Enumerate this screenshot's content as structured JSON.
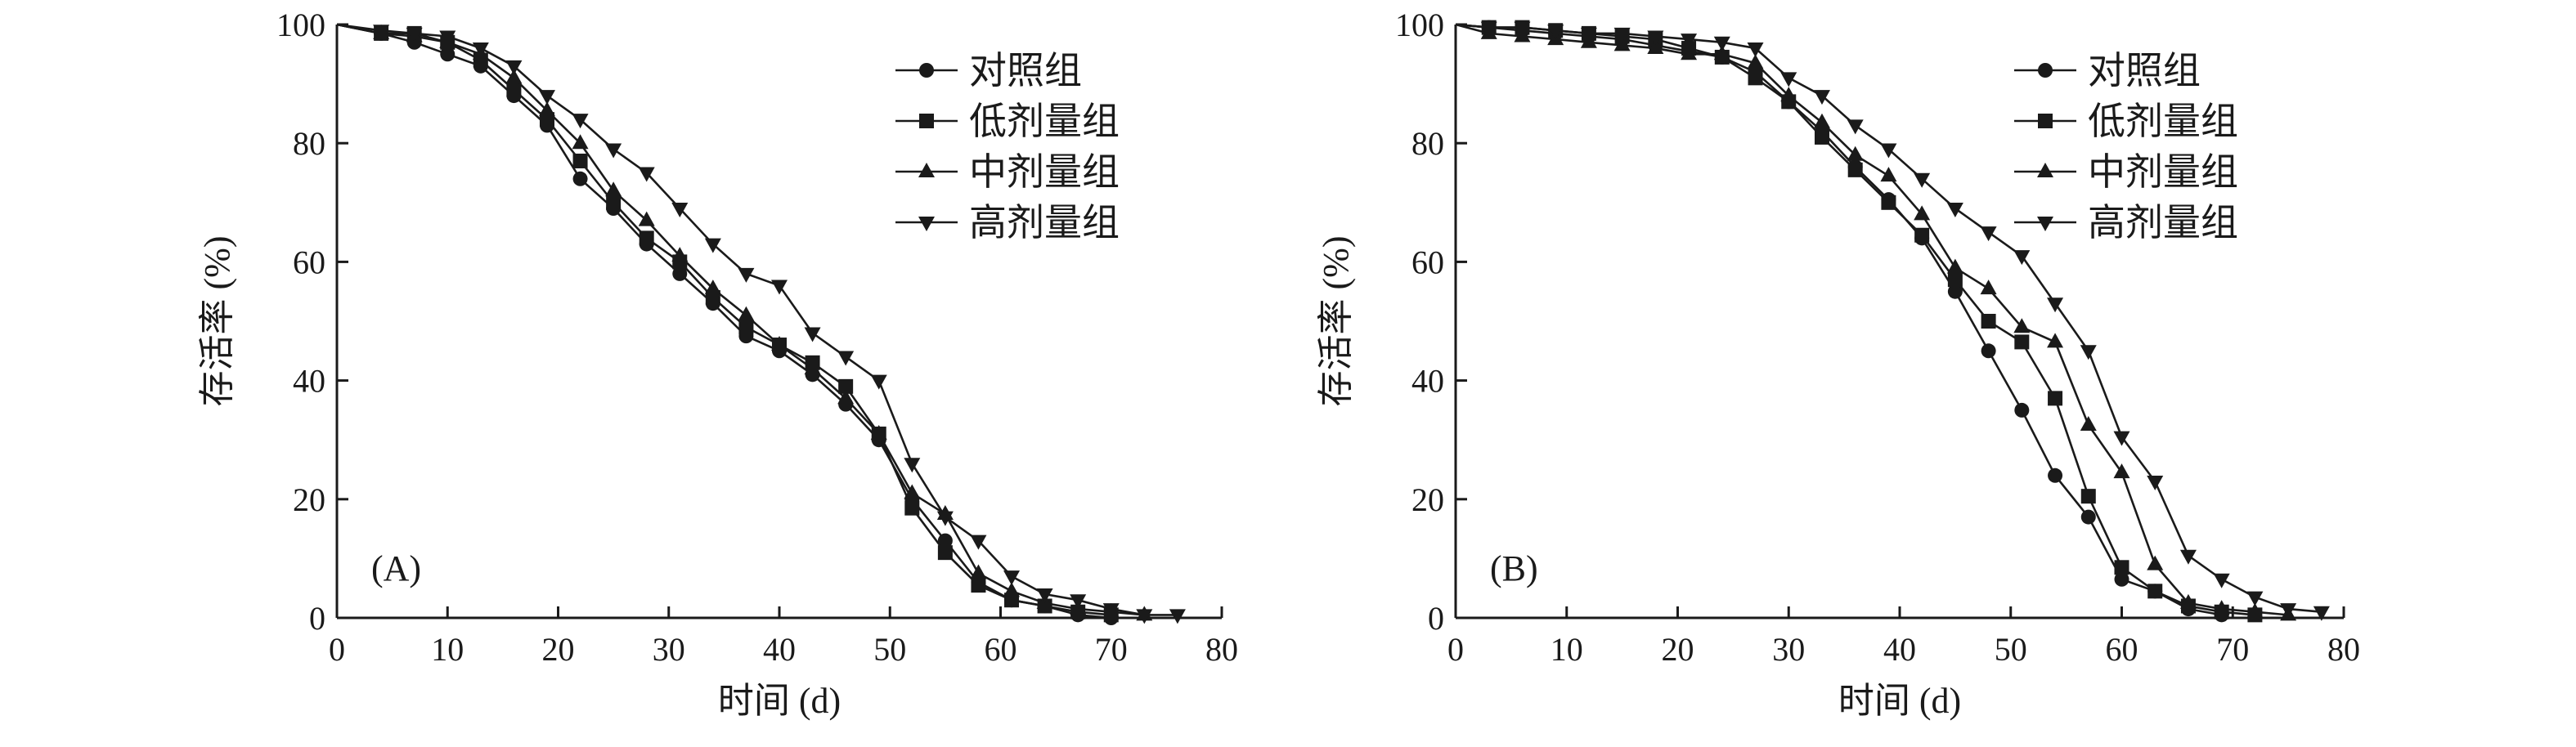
{
  "chart_data": [
    {
      "type": "line",
      "panel_label": "(A)",
      "xlabel": "时间 (d)",
      "ylabel": "存活率 (%)",
      "xlim": [
        0,
        80
      ],
      "ylim": [
        0,
        100
      ],
      "xticks": [
        "0",
        "10",
        "20",
        "30",
        "40",
        "50",
        "60",
        "70",
        "80"
      ],
      "yticks": [
        "0",
        "20",
        "40",
        "60",
        "80",
        "100"
      ],
      "grid": false,
      "legend_position": "top-right",
      "series": [
        {
          "name": "对照组",
          "marker": "circle",
          "x": [
            0,
            4,
            7,
            10,
            13,
            16,
            19,
            22,
            25,
            28,
            31,
            34,
            37,
            40,
            43,
            46,
            49,
            52,
            55,
            58,
            61,
            64,
            67,
            70
          ],
          "y": [
            100,
            98.5,
            97,
            95,
            93,
            88,
            83,
            74,
            69,
            63,
            58,
            53,
            47.5,
            45,
            41,
            36,
            30,
            20,
            13,
            6,
            3,
            2,
            0.5,
            0
          ]
        },
        {
          "name": "低剂量组",
          "marker": "square",
          "x": [
            0,
            4,
            7,
            10,
            13,
            16,
            19,
            22,
            25,
            28,
            31,
            34,
            37,
            40,
            43,
            46,
            49,
            52,
            55,
            58,
            61,
            64,
            67,
            70
          ],
          "y": [
            100,
            98.5,
            98.5,
            97,
            94,
            89,
            84,
            77,
            70,
            64,
            60,
            54,
            49,
            46,
            43,
            39,
            31,
            18.5,
            11,
            5.5,
            3,
            2,
            1,
            0.5
          ]
        },
        {
          "name": "中剂量组",
          "marker": "triangle-up",
          "x": [
            0,
            4,
            7,
            10,
            13,
            16,
            19,
            22,
            25,
            28,
            31,
            34,
            37,
            40,
            43,
            46,
            49,
            52,
            55,
            58,
            61,
            64,
            67,
            70,
            73
          ],
          "y": [
            100,
            98.5,
            98,
            97,
            95,
            91,
            85.5,
            80,
            72,
            67,
            61,
            55.5,
            51,
            46,
            42,
            37,
            31,
            21,
            17.5,
            7.5,
            4.5,
            2.5,
            1.5,
            1,
            0.5
          ]
        },
        {
          "name": "高剂量组",
          "marker": "triangle-down",
          "x": [
            0,
            4,
            7,
            10,
            13,
            16,
            19,
            22,
            25,
            28,
            31,
            34,
            37,
            40,
            43,
            46,
            49,
            52,
            55,
            58,
            61,
            64,
            67,
            70,
            73,
            76
          ],
          "y": [
            100,
            99,
            98.5,
            98,
            96,
            93,
            88,
            84,
            79,
            75,
            69,
            63,
            58,
            56,
            48,
            44,
            40,
            26,
            17,
            13,
            7,
            4,
            3,
            1.5,
            0.5,
            0.5
          ]
        }
      ]
    },
    {
      "type": "line",
      "panel_label": "(B)",
      "xlabel": "时间 (d)",
      "ylabel": "存活率 (%)",
      "xlim": [
        0,
        80
      ],
      "ylim": [
        0,
        100
      ],
      "xticks": [
        "0",
        "10",
        "20",
        "30",
        "40",
        "50",
        "60",
        "70",
        "80"
      ],
      "yticks": [
        "0",
        "20",
        "40",
        "60",
        "80",
        "100"
      ],
      "grid": false,
      "legend_position": "top-right",
      "series": [
        {
          "name": "对照组",
          "marker": "circle",
          "x": [
            0,
            3,
            6,
            9,
            12,
            15,
            18,
            21,
            24,
            27,
            30,
            33,
            36,
            39,
            42,
            45,
            48,
            51,
            54,
            57,
            60,
            63,
            66,
            69
          ],
          "y": [
            100,
            99.5,
            99,
            98.5,
            98,
            97.5,
            96.5,
            95.5,
            94.5,
            92,
            87,
            82,
            76,
            70.5,
            64,
            55,
            45,
            35,
            24,
            17,
            6.5,
            4.5,
            1.5,
            0.5
          ]
        },
        {
          "name": "低剂量组",
          "marker": "square",
          "x": [
            0,
            3,
            6,
            9,
            12,
            15,
            18,
            21,
            24,
            27,
            30,
            33,
            36,
            39,
            42,
            45,
            48,
            51,
            54,
            57,
            60,
            63,
            66,
            69,
            72
          ],
          "y": [
            100,
            99.5,
            99.5,
            99,
            98.5,
            98,
            97.5,
            96,
            94.5,
            91,
            87,
            81,
            75.5,
            70,
            64.5,
            57,
            50,
            46.5,
            37,
            20.5,
            8.5,
            4.5,
            2,
            1,
            0.5
          ]
        },
        {
          "name": "中剂量组",
          "marker": "triangle-up",
          "x": [
            0,
            3,
            6,
            9,
            12,
            15,
            18,
            21,
            24,
            27,
            30,
            33,
            36,
            39,
            42,
            45,
            48,
            51,
            54,
            57,
            60,
            63,
            66,
            69,
            72,
            75
          ],
          "y": [
            100,
            98.5,
            98,
            97.5,
            97,
            96.5,
            96,
            95,
            95,
            93.5,
            88,
            83.5,
            78,
            74.5,
            68,
            59,
            55.5,
            49,
            46.5,
            32.5,
            24.5,
            9,
            2.5,
            1.5,
            1,
            0.5
          ]
        },
        {
          "name": "高剂量组",
          "marker": "triangle-down",
          "x": [
            0,
            3,
            6,
            9,
            12,
            15,
            18,
            21,
            24,
            27,
            30,
            33,
            36,
            39,
            42,
            45,
            48,
            51,
            54,
            57,
            60,
            63,
            66,
            69,
            72,
            75,
            78
          ],
          "y": [
            100,
            99.5,
            99.5,
            99,
            98.5,
            98.5,
            98,
            97.5,
            97,
            96,
            91,
            88,
            83,
            79,
            74,
            69,
            65,
            61,
            53,
            45,
            30.5,
            23,
            10.5,
            6.5,
            3.5,
            1.5,
            1
          ]
        }
      ]
    }
  ]
}
